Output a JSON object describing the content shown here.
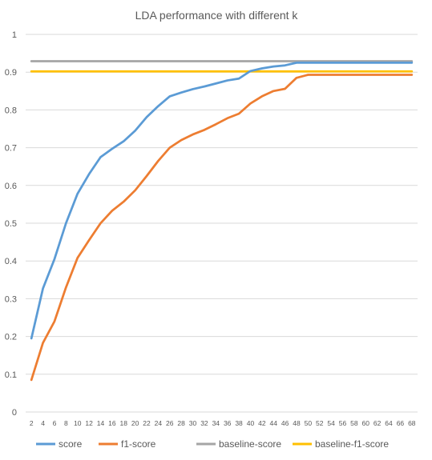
{
  "chart_data": {
    "type": "line",
    "title": "LDA performance with different k",
    "xlabel": "",
    "ylabel": "",
    "ylim": [
      0,
      1
    ],
    "yticks": [
      0,
      0.1,
      0.2,
      0.3,
      0.4,
      0.5,
      0.6,
      0.7,
      0.8,
      0.9,
      1
    ],
    "ytick_labels": [
      "0",
      "0.1",
      "0.2",
      "0.3",
      "0.4",
      "0.5",
      "0.6",
      "0.7",
      "0.8",
      "0.9",
      "1"
    ],
    "categories": [
      "2",
      "4",
      "6",
      "8",
      "10",
      "12",
      "14",
      "16",
      "18",
      "20",
      "22",
      "24",
      "26",
      "28",
      "30",
      "32",
      "34",
      "36",
      "38",
      "40",
      "42",
      "44",
      "46",
      "48",
      "50",
      "52",
      "54",
      "56",
      "58",
      "60",
      "62",
      "64",
      "66",
      "68"
    ],
    "grid": true,
    "legend_position": "bottom",
    "series": [
      {
        "name": "score",
        "color": "#5B9BD5",
        "values": [
          0.195,
          0.327,
          0.405,
          0.5,
          0.578,
          0.63,
          0.675,
          0.697,
          0.717,
          0.745,
          0.781,
          0.81,
          0.836,
          0.846,
          0.855,
          0.862,
          0.87,
          0.878,
          0.883,
          0.903,
          0.91,
          0.915,
          0.918,
          0.925,
          0.925,
          0.925,
          0.925,
          0.925,
          0.925,
          0.925,
          0.925,
          0.925,
          0.925,
          0.925
        ]
      },
      {
        "name": "f1-score",
        "color": "#ED7D31",
        "values": [
          0.085,
          0.183,
          0.24,
          0.33,
          0.408,
          0.455,
          0.5,
          0.533,
          0.557,
          0.587,
          0.625,
          0.665,
          0.7,
          0.72,
          0.735,
          0.747,
          0.762,
          0.778,
          0.79,
          0.817,
          0.836,
          0.85,
          0.856,
          0.885,
          0.893,
          0.893,
          0.893,
          0.893,
          0.893,
          0.893,
          0.893,
          0.893,
          0.893,
          0.893
        ]
      },
      {
        "name": "baseline-score",
        "color": "#A5A5A5",
        "values": [
          0.929,
          0.929,
          0.929,
          0.929,
          0.929,
          0.929,
          0.929,
          0.929,
          0.929,
          0.929,
          0.929,
          0.929,
          0.929,
          0.929,
          0.929,
          0.929,
          0.929,
          0.929,
          0.929,
          0.929,
          0.929,
          0.929,
          0.929,
          0.929,
          0.929,
          0.929,
          0.929,
          0.929,
          0.929,
          0.929,
          0.929,
          0.929,
          0.929,
          0.929
        ]
      },
      {
        "name": "baseline-f1-score",
        "color": "#FFC000",
        "values": [
          0.902,
          0.902,
          0.902,
          0.902,
          0.902,
          0.902,
          0.902,
          0.902,
          0.902,
          0.902,
          0.902,
          0.902,
          0.902,
          0.902,
          0.902,
          0.902,
          0.902,
          0.902,
          0.902,
          0.902,
          0.902,
          0.902,
          0.902,
          0.902,
          0.902,
          0.902,
          0.902,
          0.902,
          0.902,
          0.902,
          0.902,
          0.902,
          0.902,
          0.902
        ]
      }
    ]
  }
}
